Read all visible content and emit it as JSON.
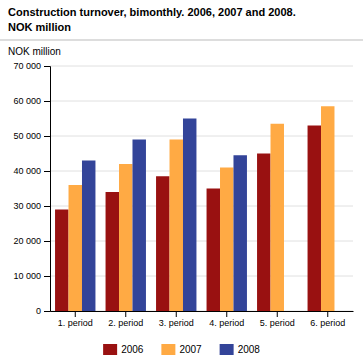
{
  "chart_data": {
    "type": "bar",
    "title": "Construction turnover, bimonthly. 2006, 2007 and 2008.",
    "subtitle": "NOK million",
    "ylabel": "NOK million",
    "categories": [
      "1. period",
      "2. period",
      "3. period",
      "4. period",
      "5. period",
      "6. period"
    ],
    "series": [
      {
        "name": "2006",
        "color": "#991111",
        "values": [
          29000,
          34000,
          38500,
          35000,
          45000,
          53000
        ]
      },
      {
        "name": "2007",
        "color": "#FFAA44",
        "values": [
          36000,
          42000,
          49000,
          41000,
          53500,
          58500
        ]
      },
      {
        "name": "2008",
        "color": "#334499",
        "values": [
          43000,
          49000,
          55000,
          44500,
          null,
          null
        ]
      }
    ],
    "ylim": [
      0,
      70000
    ],
    "yticks": [
      0,
      {
        "value": 10000,
        "label": "10 000"
      },
      {
        "value": 20000,
        "label": "20 000"
      },
      {
        "value": 30000,
        "label": "30 000"
      },
      {
        "value": 40000,
        "label": "40 000"
      },
      {
        "value": 50000,
        "label": "50 000"
      },
      {
        "value": 60000,
        "label": "60 000"
      },
      {
        "value": 70000,
        "label": "70 000"
      }
    ],
    "grid": true,
    "legend": "bottom"
  }
}
